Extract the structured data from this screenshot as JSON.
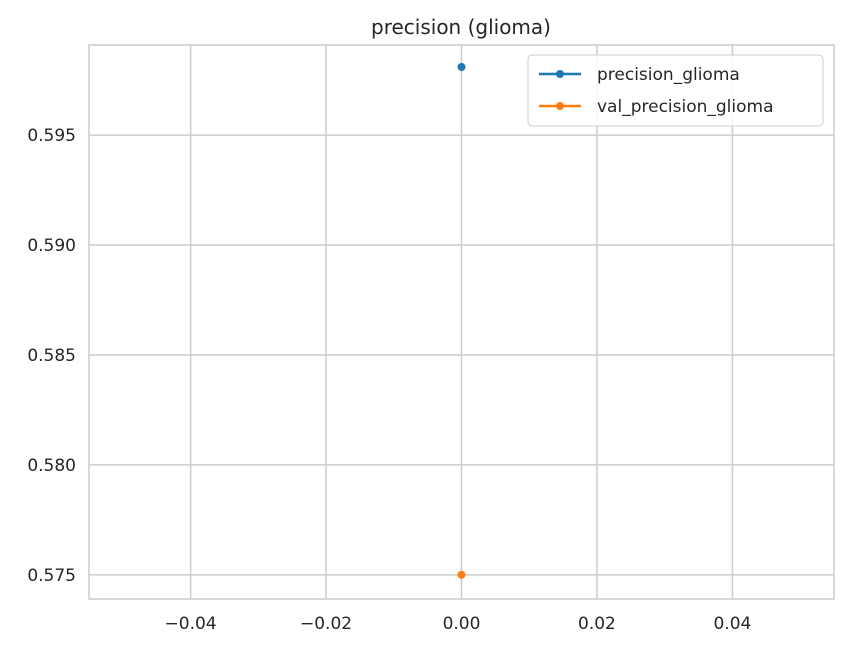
{
  "chart_data": {
    "type": "line",
    "title": "precision (glioma)",
    "xlabel": "",
    "ylabel": "",
    "xlim": [
      -0.055,
      0.055
    ],
    "ylim": [
      0.5739,
      0.5991
    ],
    "x_ticks": [
      -0.04,
      -0.02,
      0.0,
      0.02,
      0.04
    ],
    "x_tick_labels": [
      "−0.04",
      "−0.02",
      "0.00",
      "0.02",
      "0.04"
    ],
    "y_ticks": [
      0.575,
      0.58,
      0.585,
      0.59,
      0.595
    ],
    "y_tick_labels": [
      "0.575",
      "0.580",
      "0.585",
      "0.590",
      "0.595"
    ],
    "grid": true,
    "legend_position": "top-right",
    "series": [
      {
        "name": "precision_glioma",
        "color": "#1f77b4",
        "x": [
          0
        ],
        "y": [
          0.5981
        ],
        "marker": "circle"
      },
      {
        "name": "val_precision_glioma",
        "color": "#ff7f0e",
        "x": [
          0
        ],
        "y": [
          0.575
        ],
        "marker": "circle"
      }
    ]
  }
}
